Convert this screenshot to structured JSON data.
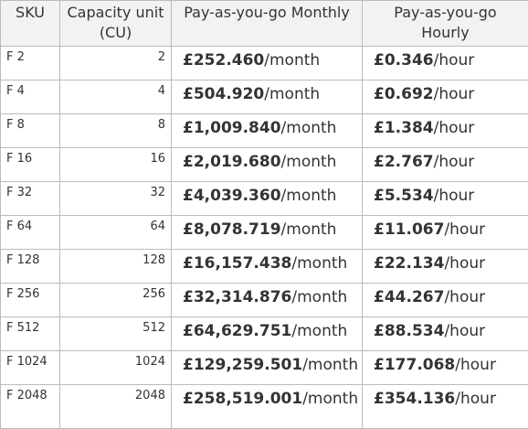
{
  "table": {
    "headers": [
      "SKU",
      "Capacity unit (CU)",
      "Pay-as-you-go Monthly",
      "Pay-as-you-go Hourly"
    ],
    "rows": [
      {
        "sku": "F 2",
        "cu": 2,
        "monthly": {
          "amount": "£252.460",
          "unit": "/month"
        },
        "hourly": {
          "amount": "£0.346",
          "unit": "/hour"
        }
      },
      {
        "sku": "F 4",
        "cu": 4,
        "monthly": {
          "amount": "£504.920",
          "unit": "/month"
        },
        "hourly": {
          "amount": "£0.692",
          "unit": "/hour"
        }
      },
      {
        "sku": "F 8",
        "cu": 8,
        "monthly": {
          "amount": "£1,009.840",
          "unit": "/month"
        },
        "hourly": {
          "amount": "£1.384",
          "unit": "/hour"
        }
      },
      {
        "sku": "F 16",
        "cu": 16,
        "monthly": {
          "amount": "£2,019.680",
          "unit": "/month"
        },
        "hourly": {
          "amount": "£2.767",
          "unit": "/hour"
        }
      },
      {
        "sku": "F 32",
        "cu": 32,
        "monthly": {
          "amount": "£4,039.360",
          "unit": "/month"
        },
        "hourly": {
          "amount": "£5.534",
          "unit": "/hour"
        }
      },
      {
        "sku": "F 64",
        "cu": 64,
        "monthly": {
          "amount": "£8,078.719",
          "unit": "/month"
        },
        "hourly": {
          "amount": "£11.067",
          "unit": "/hour"
        }
      },
      {
        "sku": "F 128",
        "cu": 128,
        "monthly": {
          "amount": "£16,157.438",
          "unit": "/month"
        },
        "hourly": {
          "amount": "£22.134",
          "unit": "/hour"
        }
      },
      {
        "sku": "F 256",
        "cu": 256,
        "monthly": {
          "amount": "£32,314.876",
          "unit": "/month"
        },
        "hourly": {
          "amount": "£44.267",
          "unit": "/hour"
        }
      },
      {
        "sku": "F 512",
        "cu": 512,
        "monthly": {
          "amount": "£64,629.751",
          "unit": "/month"
        },
        "hourly": {
          "amount": "£88.534",
          "unit": "/hour"
        }
      },
      {
        "sku": "F 1024",
        "cu": 1024,
        "monthly": {
          "amount": "£129,259.501",
          "unit": "/month"
        },
        "hourly": {
          "amount": "£177.068",
          "unit": "/hour"
        }
      },
      {
        "sku": "F 2048",
        "cu": 2048,
        "monthly": {
          "amount": "£258,519.001",
          "unit": "/month"
        },
        "hourly": {
          "amount": "£354.136",
          "unit": "/hour"
        }
      }
    ]
  }
}
